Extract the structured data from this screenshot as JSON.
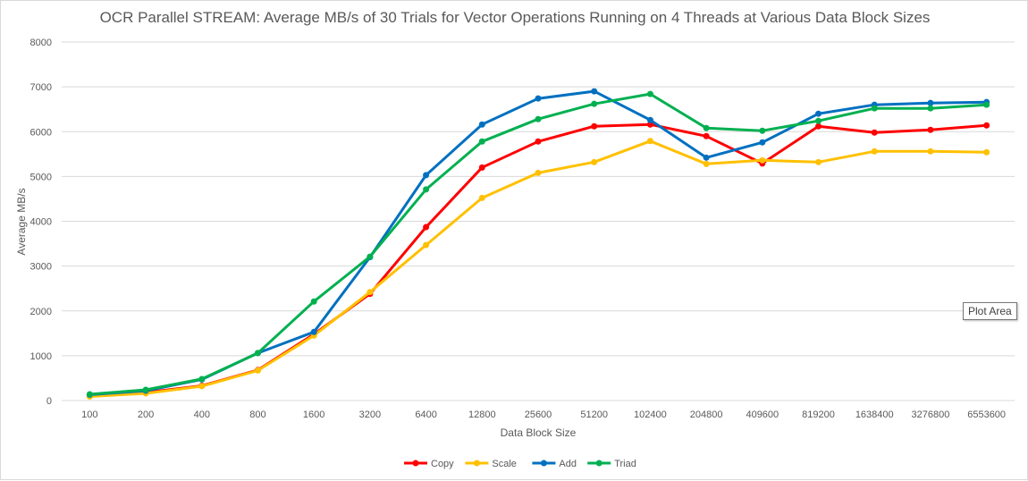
{
  "chart_data": {
    "type": "line",
    "title": "OCR Parallel STREAM:  Average MB/s of 30 Trials for Vector Operations Running on 4 Threads at Various Data Block Sizes",
    "xlabel": "Data Block Size",
    "ylabel": "Average MB/s",
    "categories": [
      "100",
      "200",
      "400",
      "800",
      "1600",
      "3200",
      "6400",
      "12800",
      "25600",
      "51200",
      "102400",
      "204800",
      "409600",
      "819200",
      "1638400",
      "3276800",
      "6553600"
    ],
    "ylim": [
      0,
      8000
    ],
    "yticks": [
      0,
      1000,
      2000,
      3000,
      4000,
      5000,
      6000,
      7000,
      8000
    ],
    "grid": true,
    "legend_position": "bottom",
    "series": [
      {
        "name": "Copy",
        "color": "#ff0000",
        "values": [
          110,
          180,
          330,
          680,
          1480,
          2380,
          3870,
          5200,
          5780,
          6120,
          6160,
          5900,
          5290,
          6120,
          5980,
          6040,
          6140
        ]
      },
      {
        "name": "Scale",
        "color": "#ffc000",
        "values": [
          90,
          160,
          320,
          670,
          1450,
          2420,
          3470,
          4520,
          5080,
          5320,
          5790,
          5280,
          5360,
          5320,
          5560,
          5560,
          5540
        ]
      },
      {
        "name": "Add",
        "color": "#0070c0",
        "values": [
          130,
          220,
          470,
          1060,
          1530,
          3200,
          5030,
          6160,
          6740,
          6900,
          6260,
          5420,
          5760,
          6400,
          6600,
          6640,
          6660
        ]
      },
      {
        "name": "Triad",
        "color": "#00b050",
        "values": [
          140,
          240,
          480,
          1060,
          2210,
          3210,
          4710,
          5780,
          6280,
          6620,
          6840,
          6080,
          6020,
          6240,
          6520,
          6520,
          6600
        ]
      }
    ]
  },
  "tooltip": {
    "text": "Plot Area"
  }
}
